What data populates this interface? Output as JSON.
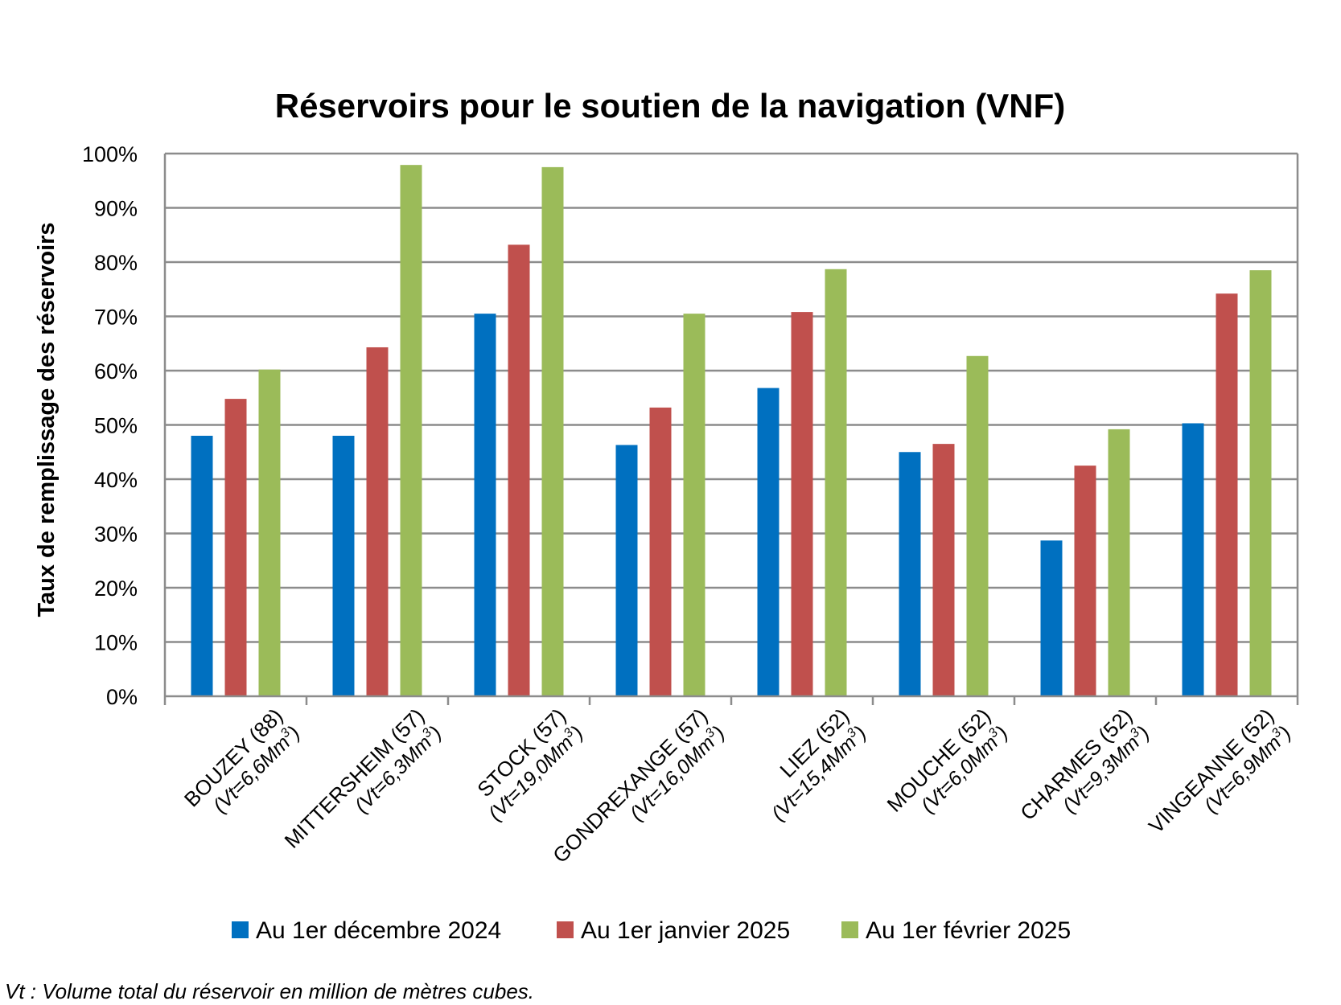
{
  "chart_data": {
    "type": "bar",
    "title": "Réservoirs pour le soutien de la navigation (VNF)",
    "ylabel": "Taux de remplissage des réservoirs",
    "xlabel": "",
    "ylim": [
      0,
      100
    ],
    "yticks": [
      "0%",
      "10%",
      "20%",
      "30%",
      "40%",
      "50%",
      "60%",
      "70%",
      "80%",
      "90%",
      "100%"
    ],
    "grid": true,
    "legend_position": "bottom",
    "categories": [
      {
        "name": "BOUZEY (88)",
        "volume": "(Vt=6,6Mm",
        "sup": "3",
        "close": ")"
      },
      {
        "name": "MITTERSHEIM (57)",
        "volume": "(Vt=6,3Mm",
        "sup": "3",
        "close": ")"
      },
      {
        "name": "STOCK (57)",
        "volume": "(Vt=19,0Mm",
        "sup": "3",
        "close": ")"
      },
      {
        "name": "GONDREXANGE (57)",
        "volume": "(Vt=16,0Mm",
        "sup": "3",
        "close": ")"
      },
      {
        "name": "LIEZ (52)",
        "volume": "(Vt=15,4Mm",
        "sup": "3",
        "close": ")"
      },
      {
        "name": "MOUCHE (52)",
        "volume": "(Vt=6,0Mm",
        "sup": "3",
        "close": ")"
      },
      {
        "name": "CHARMES (52)",
        "volume": "(Vt=9,3Mm",
        "sup": "3",
        "close": ")"
      },
      {
        "name": "VINGEANNE (52)",
        "volume": "(Vt=6,9Mm",
        "sup": "3",
        "close": ")"
      }
    ],
    "series": [
      {
        "name": "Au 1er décembre 2024",
        "color": "#0070C0",
        "values": [
          48,
          48,
          70.5,
          46.3,
          56.8,
          45,
          28.7,
          50.3
        ]
      },
      {
        "name": "Au 1er janvier 2025",
        "color": "#C0504D",
        "values": [
          54.8,
          64.3,
          83.2,
          53.2,
          70.8,
          46.5,
          42.5,
          74.2
        ]
      },
      {
        "name": "Au 1er février 2025",
        "color": "#9BBB59",
        "values": [
          60.2,
          97.9,
          97.5,
          70.5,
          78.7,
          62.7,
          49.2,
          78.5
        ]
      }
    ]
  },
  "footnote": "Vt : Volume total du réservoir en million de mètres cubes."
}
